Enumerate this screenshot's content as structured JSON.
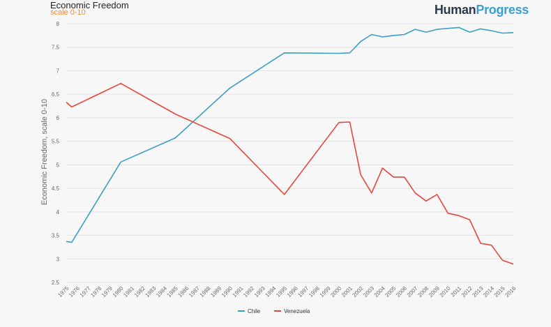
{
  "header": {
    "title": "Economic Freedom",
    "subtitle": "scale 0-10",
    "logo_part1": "Human",
    "logo_part2": "Progress"
  },
  "colors": {
    "chile": "#3a9fc4",
    "venezuela": "#e8453c",
    "grid": "#e2e2e2"
  },
  "chart_data": {
    "type": "line",
    "title": "Economic Freedom",
    "subtitle": "scale 0-10",
    "xlabel": "",
    "ylabel": "Economic Freedom, scale 0-10",
    "ylim": [
      2.5,
      8
    ],
    "yticks": [
      "2.5",
      "3",
      "3.5",
      "4",
      "4.5",
      "5",
      "5.5",
      "6",
      "6.5",
      "7",
      "7.5",
      "8"
    ],
    "xlim": [
      1975,
      2016
    ],
    "xticks": [
      "1975",
      "1976",
      "1977",
      "1978",
      "1979",
      "1980",
      "1981",
      "1982",
      "1983",
      "1984",
      "1985",
      "1986",
      "1987",
      "1988",
      "1989",
      "1990",
      "1991",
      "1992",
      "1993",
      "1994",
      "1995",
      "1996",
      "1997",
      "1998",
      "1999",
      "2000",
      "2001",
      "2002",
      "2003",
      "2004",
      "2005",
      "2006",
      "2007",
      "2008",
      "2009",
      "2010",
      "2011",
      "2012",
      "2013",
      "2014",
      "2015",
      "2016"
    ],
    "legend": "bottom-center",
    "grid": true,
    "series": [
      {
        "name": "Chile",
        "color": "#3a9fc4",
        "points": [
          [
            1975,
            3.37
          ],
          [
            1975.5,
            3.35
          ],
          [
            1980,
            5.06
          ],
          [
            1985,
            5.57
          ],
          [
            1990,
            6.63
          ],
          [
            1995,
            7.38
          ],
          [
            2000,
            7.37
          ],
          [
            2001,
            7.38
          ],
          [
            2002,
            7.62
          ],
          [
            2003,
            7.77
          ],
          [
            2004,
            7.72
          ],
          [
            2005,
            7.75
          ],
          [
            2006,
            7.77
          ],
          [
            2007,
            7.88
          ],
          [
            2008,
            7.82
          ],
          [
            2009,
            7.88
          ],
          [
            2010,
            7.9
          ],
          [
            2011,
            7.92
          ],
          [
            2012,
            7.82
          ],
          [
            2013,
            7.89
          ],
          [
            2014,
            7.85
          ],
          [
            2015,
            7.8
          ],
          [
            2016,
            7.81
          ]
        ]
      },
      {
        "name": "Venezuela",
        "color": "#e8453c",
        "points": [
          [
            1975,
            6.33
          ],
          [
            1975.5,
            6.23
          ],
          [
            1980,
            6.73
          ],
          [
            1985,
            6.08
          ],
          [
            1990,
            5.56
          ],
          [
            1995,
            4.37
          ],
          [
            2000,
            5.9
          ],
          [
            2001,
            5.91
          ],
          [
            2002,
            4.79
          ],
          [
            2003,
            4.4
          ],
          [
            2004,
            4.93
          ],
          [
            2005,
            4.74
          ],
          [
            2006,
            4.74
          ],
          [
            2007,
            4.4
          ],
          [
            2008,
            4.23
          ],
          [
            2009,
            4.37
          ],
          [
            2010,
            3.97
          ],
          [
            2011,
            3.92
          ],
          [
            2012,
            3.83
          ],
          [
            2013,
            3.33
          ],
          [
            2014,
            3.29
          ],
          [
            2015,
            2.97
          ],
          [
            2016,
            2.89
          ]
        ]
      }
    ]
  }
}
